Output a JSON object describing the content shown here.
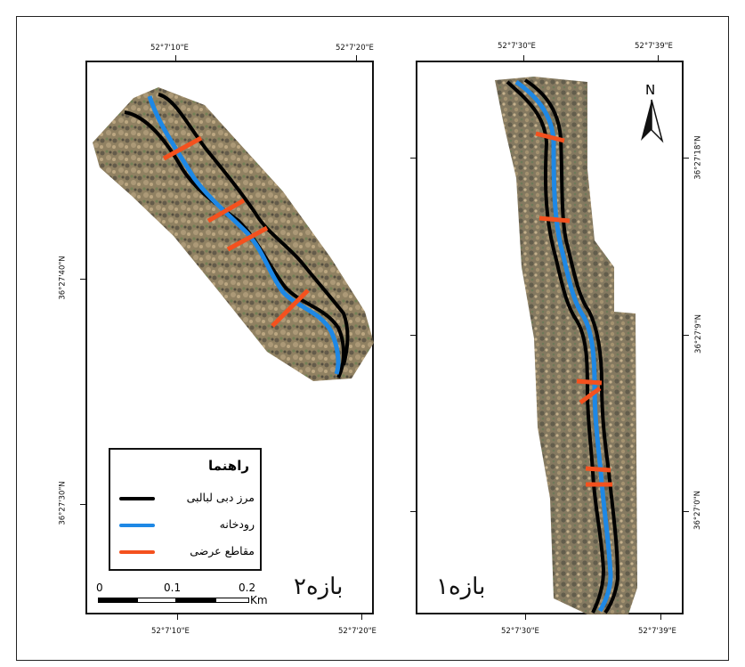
{
  "left_map": {
    "top_coords": [
      "52°7'10\"E",
      "52°7'20\"E"
    ],
    "bottom_coords": [
      "52°7'10\"E",
      "52°7'20\"E"
    ],
    "side_coords": [
      "36°27'40\"N",
      "36°27'30\"N"
    ],
    "reach_label": "بازه۲"
  },
  "right_map": {
    "top_coords": [
      "52°7'30\"E",
      "52°7'39\"E"
    ],
    "bottom_coords": [
      "52°7'30\"E",
      "52°7'39\"E"
    ],
    "side_coords": [
      "36°27'18\"N",
      "36°27'9\"N",
      "36°27'0\"N"
    ],
    "reach_label": "بازه۱"
  },
  "legend": {
    "title": "راهنما",
    "items": [
      {
        "label": "مرز دبی لبالبی",
        "color": "#000000"
      },
      {
        "label": "رودخانه",
        "color": "#1e88e5"
      },
      {
        "label": "مقاطع عرضی",
        "color": "#f4511e"
      }
    ]
  },
  "scale_bar": {
    "labels": [
      "0",
      "0.1",
      "0.2"
    ],
    "unit": "Km"
  },
  "north_arrow": {
    "label": "N"
  },
  "colors": {
    "river": "#1e88e5",
    "bank": "#000000",
    "section": "#f4511e"
  }
}
